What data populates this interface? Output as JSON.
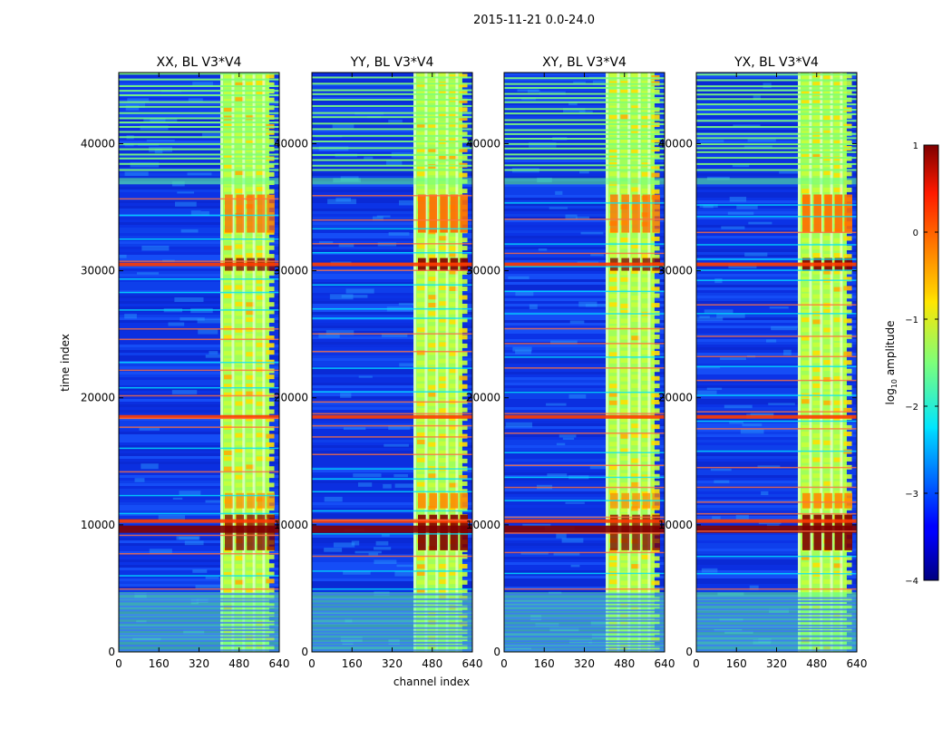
{
  "figure": {
    "suptitle": "2015-11-21 0.0-24.0",
    "xlabel": "channel index",
    "ylabel": "time index"
  },
  "chart_data": {
    "type": "heatmap",
    "panels": [
      {
        "title": "XX, BL V3*V4"
      },
      {
        "title": "YY, BL V3*V4"
      },
      {
        "title": "XY, BL V3*V4"
      },
      {
        "title": "YX, BL V3*V4"
      }
    ],
    "x_ticks": [
      0,
      160,
      320,
      480,
      640
    ],
    "y_ticks": [
      0,
      10000,
      20000,
      30000,
      40000
    ],
    "xlim": [
      0,
      640
    ],
    "ylim": [
      0,
      45600
    ],
    "colorbar": {
      "label": "log",
      "label_sub": "10",
      "label_suffix": " amplitude",
      "ticks": [
        1,
        0,
        -1,
        -2,
        -3,
        -4
      ],
      "tick_labels": [
        "1",
        "0",
        "−1",
        "−2",
        "−3",
        "−4"
      ],
      "range": [
        -4,
        1
      ],
      "colormap": "jet"
    },
    "rfi_band_channels": [
      405,
      600
    ],
    "strong_time_rows": [
      9800,
      10300,
      18500,
      30500
    ],
    "colors": {
      "low": "#0c2fe0",
      "mid": "#a0ff5a",
      "high": "#ff3c00",
      "max": "#7f0000"
    }
  }
}
